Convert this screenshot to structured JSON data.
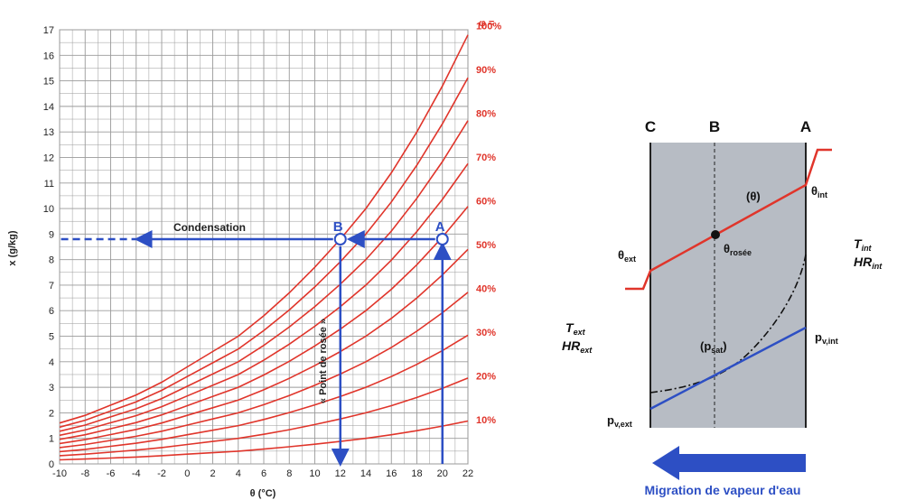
{
  "chart_data": [
    {
      "type": "line",
      "xlabel": "θ (°C)",
      "ylabel": "x (g/kg)",
      "xlim": [
        -10,
        22
      ],
      "ylim": [
        0,
        17
      ],
      "x_ticks": [
        "-10",
        "-8",
        "-6",
        "-4",
        "-2",
        "0",
        "2",
        "4",
        "6",
        "8",
        "10",
        "12",
        "14",
        "16",
        "18",
        "20",
        "22"
      ],
      "y_ticks": [
        "0",
        "1",
        "2",
        "3",
        "4",
        "5",
        "6",
        "7",
        "8",
        "9",
        "10",
        "11",
        "12",
        "13",
        "14",
        "15",
        "16",
        "17"
      ],
      "grid": true,
      "rh_title": "φ =",
      "x": [
        -10,
        -8,
        -6,
        -4,
        -2,
        0,
        2,
        4,
        6,
        8,
        10,
        12,
        14,
        16,
        18,
        20,
        22
      ],
      "saturation_x": [
        1.6,
        1.9,
        2.3,
        2.7,
        3.2,
        3.8,
        4.4,
        5.0,
        5.8,
        6.7,
        7.7,
        8.8,
        10.0,
        11.4,
        13.0,
        14.8,
        16.8
      ],
      "series": [
        {
          "name": "10%",
          "rh": 0.1
        },
        {
          "name": "20%",
          "rh": 0.2
        },
        {
          "name": "30%",
          "rh": 0.3
        },
        {
          "name": "40%",
          "rh": 0.4
        },
        {
          "name": "50%",
          "rh": 0.5
        },
        {
          "name": "60%",
          "rh": 0.6
        },
        {
          "name": "70%",
          "rh": 0.7
        },
        {
          "name": "80%",
          "rh": 0.8
        },
        {
          "name": "90%",
          "rh": 0.9
        },
        {
          "name": "100%",
          "rh": 1.0
        }
      ],
      "points": [
        {
          "label": "A",
          "x": 20,
          "y": 8.8
        },
        {
          "label": "B",
          "x": 12,
          "y": 8.8
        }
      ],
      "annotations": {
        "condensation": "Condensation",
        "dew_point": "« Point de rosée »"
      },
      "colors": {
        "curves": "#e0352b",
        "construction": "#2d4fc4",
        "grid": "#9a9a9a"
      }
    }
  ],
  "diagram": {
    "col_labels": [
      "C",
      "B",
      "A"
    ],
    "theta": "(θ)",
    "theta_int": {
      "base": "θ",
      "sub": "int"
    },
    "theta_ext": {
      "base": "θ",
      "sub": "ext"
    },
    "theta_rosee": {
      "base": "θ",
      "sub": "rosée"
    },
    "p_sat": {
      "base": "(p",
      "sub": "sat",
      "tail": ")"
    },
    "pv_int": {
      "base": "p",
      "sub": "v,int"
    },
    "pv_ext": {
      "base": "p",
      "sub": "v,ext"
    },
    "t_int": {
      "base": "T",
      "sub": "int"
    },
    "hr_int": {
      "base": "HR",
      "sub": "int"
    },
    "t_ext": {
      "base": "T",
      "sub": "ext"
    },
    "hr_ext": {
      "base": "HR",
      "sub": "ext"
    },
    "migration": "Migration de vapeur d'eau",
    "colors": {
      "wall": "#b7bcc4",
      "temperature": "#e0352b",
      "vapour": "#2d4fc4",
      "arrow": "#2d4fc4"
    }
  }
}
